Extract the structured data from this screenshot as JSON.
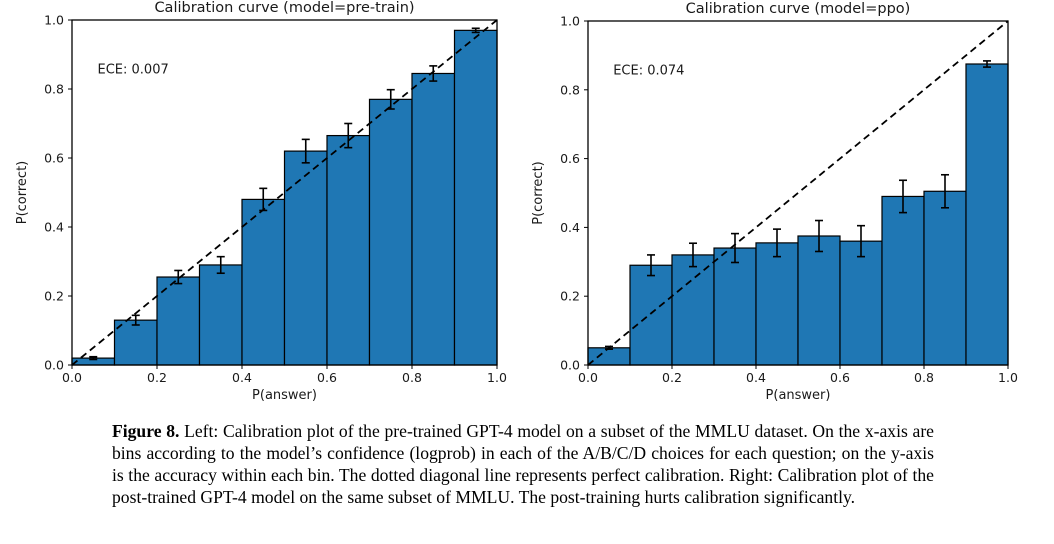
{
  "figure": {
    "caption_label": "Figure 8.",
    "caption_text": " Left: Calibration plot of the pre-trained GPT-4 model on a subset of the MMLU dataset. On the x-axis are bins according to the model’s confidence (logprob) in each of the A/B/C/D choices for each question; on the y-axis is the accuracy within each bin. The dotted diagonal line represents perfect calibration. Right: Calibration plot of the post-trained GPT-4 model on the same subset of MMLU. The post-training hurts calibration significantly."
  },
  "colors": {
    "bar_fill": "#1f77b4",
    "bar_edge": "#000000",
    "axis": "#000000",
    "text": "#1a1a1a",
    "background": "#ffffff"
  },
  "chart_data": [
    {
      "type": "bar",
      "title": "Calibration curve (model=pre-train)",
      "annotation": "ECE: 0.007",
      "xlabel": "P(answer)",
      "ylabel": "P(correct)",
      "xlim": [
        0.0,
        1.0
      ],
      "ylim": [
        0.0,
        1.0
      ],
      "xticks": [
        "0.0",
        "0.2",
        "0.4",
        "0.6",
        "0.8",
        "1.0"
      ],
      "yticks": [
        "0.0",
        "0.2",
        "0.4",
        "0.6",
        "0.8",
        "1.0"
      ],
      "grid": false,
      "diagonal_reference_line": true,
      "bin_edges": [
        0.0,
        0.1,
        0.2,
        0.3,
        0.4,
        0.5,
        0.6,
        0.7,
        0.8,
        0.9,
        1.0
      ],
      "values": [
        0.02,
        0.13,
        0.255,
        0.29,
        0.48,
        0.62,
        0.665,
        0.77,
        0.845,
        0.97
      ],
      "errors": [
        0.004,
        0.014,
        0.019,
        0.024,
        0.032,
        0.034,
        0.035,
        0.028,
        0.022,
        0.006
      ]
    },
    {
      "type": "bar",
      "title": "Calibration curve (model=ppo)",
      "annotation": "ECE: 0.074",
      "xlabel": "P(answer)",
      "ylabel": "P(correct)",
      "xlim": [
        0.0,
        1.0
      ],
      "ylim": [
        0.0,
        1.0
      ],
      "xticks": [
        "0.0",
        "0.2",
        "0.4",
        "0.6",
        "0.8",
        "1.0"
      ],
      "yticks": [
        "0.0",
        "0.2",
        "0.4",
        "0.6",
        "0.8",
        "1.0"
      ],
      "grid": false,
      "diagonal_reference_line": true,
      "bin_edges": [
        0.0,
        0.1,
        0.2,
        0.3,
        0.4,
        0.5,
        0.6,
        0.7,
        0.8,
        0.9,
        1.0
      ],
      "values": [
        0.05,
        0.29,
        0.32,
        0.34,
        0.355,
        0.375,
        0.36,
        0.49,
        0.505,
        0.875
      ],
      "errors": [
        0.004,
        0.03,
        0.034,
        0.042,
        0.04,
        0.045,
        0.045,
        0.047,
        0.048,
        0.009
      ]
    }
  ]
}
